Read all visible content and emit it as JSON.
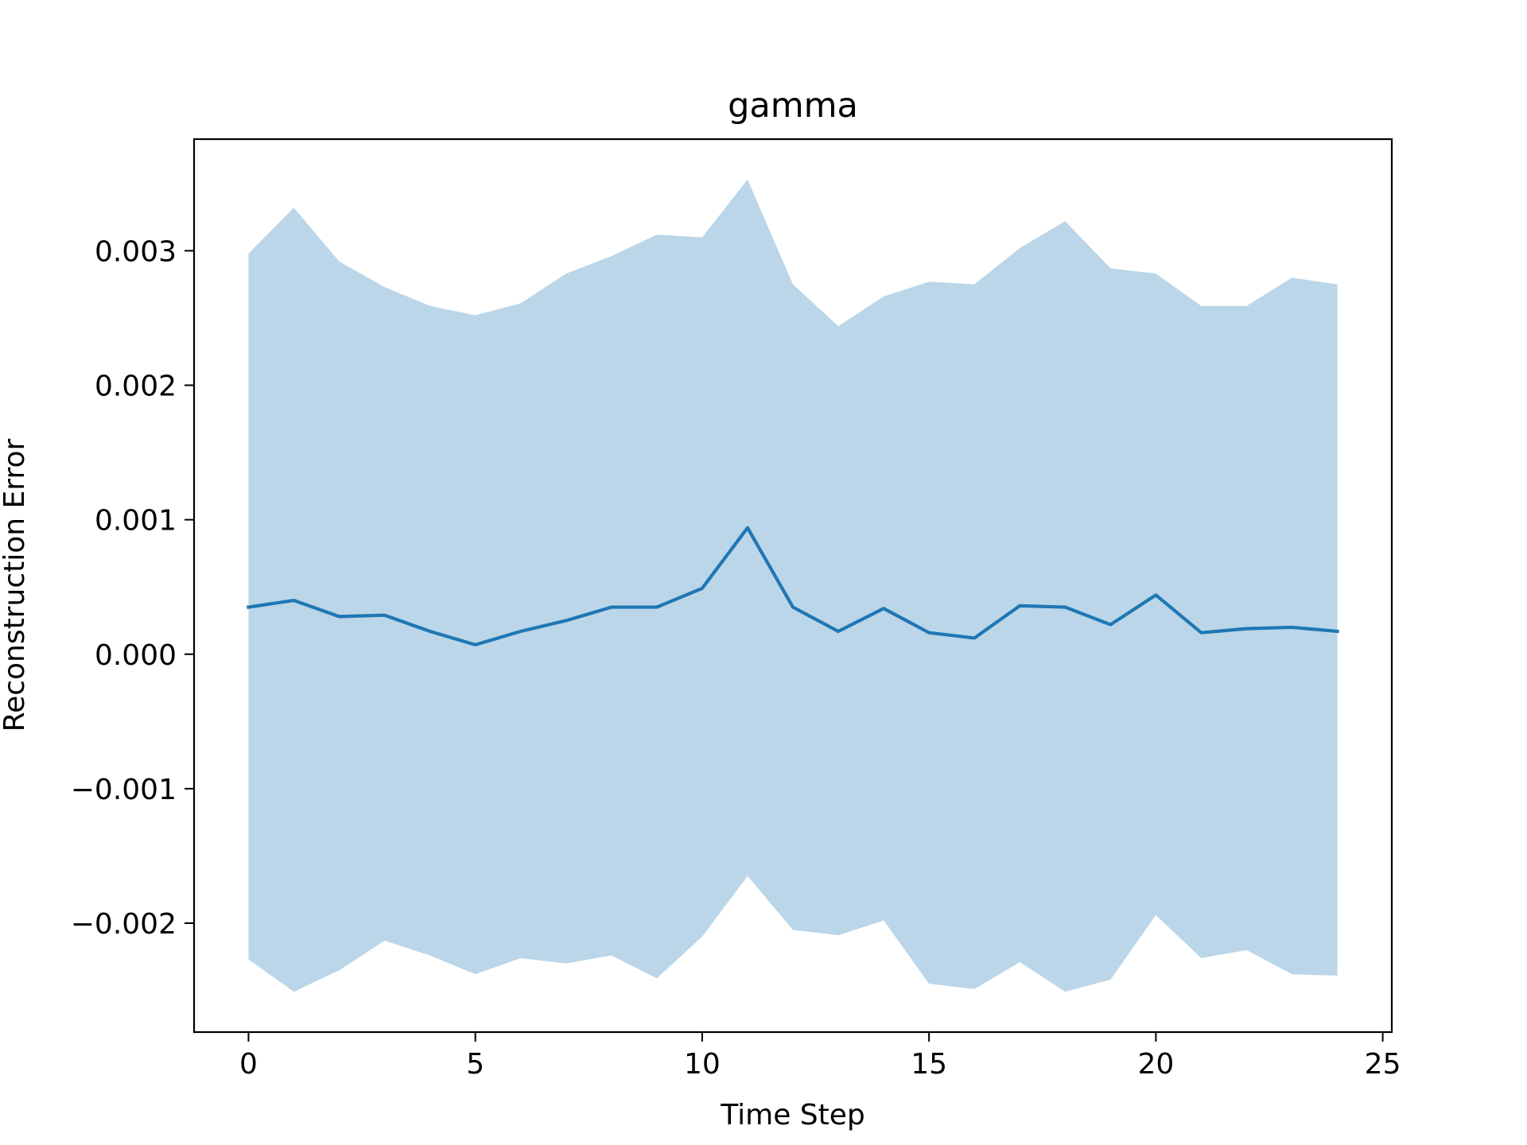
{
  "chart_data": {
    "type": "line",
    "title": "gamma",
    "xlabel": "Time Step",
    "ylabel": "Reconstruction Error",
    "xlim": [
      -1.2,
      25.2
    ],
    "ylim": [
      -0.00281,
      0.00383
    ],
    "xticks": [
      0,
      5,
      10,
      15,
      20,
      25
    ],
    "xtick_labels": [
      "0",
      "5",
      "10",
      "15",
      "20",
      "25"
    ],
    "yticks": [
      -0.002,
      -0.001,
      0.0,
      0.001,
      0.002,
      0.003
    ],
    "ytick_labels": [
      "−0.002",
      "−0.001",
      "0.000",
      "0.001",
      "0.002",
      "0.003"
    ],
    "grid": false,
    "colors": {
      "line": "#1f77b4",
      "band": "#1f77b4"
    },
    "x": [
      0,
      1,
      2,
      3,
      4,
      5,
      6,
      7,
      8,
      9,
      10,
      11,
      12,
      13,
      14,
      15,
      16,
      17,
      18,
      19,
      20,
      21,
      22,
      23,
      24
    ],
    "series": [
      {
        "values": [
          0.00035,
          0.0004,
          0.00028,
          0.00029,
          0.00017,
          7e-05,
          0.00017,
          0.00025,
          0.00035,
          0.00035,
          0.00049,
          0.00094,
          0.00035,
          0.00017,
          0.00034,
          0.00016,
          0.00012,
          0.00036,
          0.00035,
          0.00022,
          0.00044,
          0.00016,
          0.00019,
          0.0002,
          0.00017
        ],
        "upper": [
          0.00298,
          0.00332,
          0.00292,
          0.00273,
          0.00259,
          0.00252,
          0.00261,
          0.00283,
          0.00296,
          0.00312,
          0.0031,
          0.00353,
          0.00275,
          0.00244,
          0.00266,
          0.00277,
          0.00275,
          0.00302,
          0.00322,
          0.00287,
          0.00283,
          0.00259,
          0.00259,
          0.0028,
          0.00275
        ],
        "lower": [
          -0.00227,
          -0.00251,
          -0.00235,
          -0.00213,
          -0.00224,
          -0.00238,
          -0.00226,
          -0.0023,
          -0.00224,
          -0.00241,
          -0.0021,
          -0.00165,
          -0.00205,
          -0.00209,
          -0.00198,
          -0.00245,
          -0.00249,
          -0.00229,
          -0.00251,
          -0.00242,
          -0.00194,
          -0.00226,
          -0.0022,
          -0.00238,
          -0.00239
        ]
      }
    ]
  }
}
